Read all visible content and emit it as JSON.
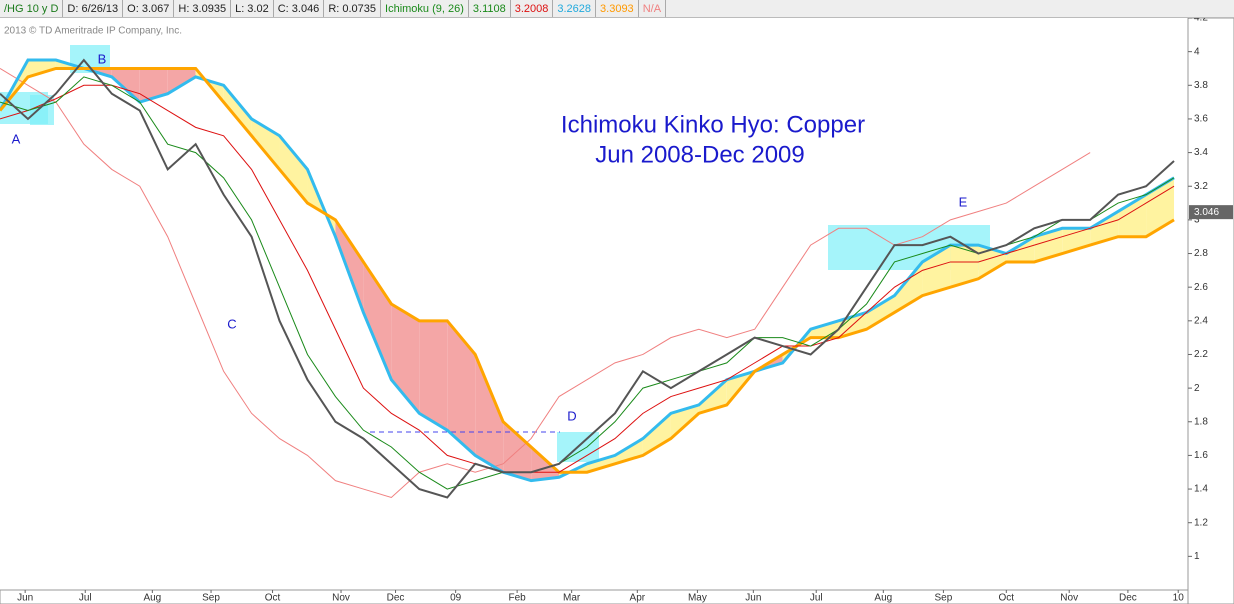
{
  "toolbar": [
    {
      "text": "/HG 10 y D",
      "color": "#1a7a1a"
    },
    {
      "text": "D: 6/26/13",
      "color": "#222"
    },
    {
      "text": "O: 3.067",
      "color": "#222"
    },
    {
      "text": "H: 3.0935",
      "color": "#222"
    },
    {
      "text": "L: 3.02",
      "color": "#222"
    },
    {
      "text": "C: 3.046",
      "color": "#222"
    },
    {
      "text": "R: 0.0735",
      "color": "#222"
    },
    {
      "text": "Ichimoku (9, 26)",
      "color": "#1a8a1a"
    },
    {
      "text": "3.1108",
      "color": "#1a8a1a"
    },
    {
      "text": "3.2008",
      "color": "#dd1111"
    },
    {
      "text": "3.2628",
      "color": "#22aadd"
    },
    {
      "text": "3.3093",
      "color": "#ff9900"
    },
    {
      "text": "N/A",
      "color": "#f08080"
    }
  ],
  "copyright": "2013 © TD Ameritrade IP Company, Inc.",
  "chart_data": {
    "type": "line",
    "title": "Ichimoku Kinko Hyo: Copper",
    "subtitle": "Jun 2008-Dec 2009",
    "annotations": [
      "A",
      "B",
      "C",
      "D",
      "E"
    ],
    "x": [
      0,
      2,
      4,
      6,
      8,
      10,
      12,
      14,
      16,
      18,
      20,
      22,
      24,
      26,
      28,
      30,
      32,
      34,
      36,
      38,
      40,
      42,
      44,
      46,
      48,
      50,
      52,
      54,
      56,
      58,
      60,
      62,
      64,
      66,
      68,
      70,
      72,
      74,
      76,
      78,
      80,
      82,
      84
    ],
    "xlim": [
      0,
      85
    ],
    "xticks": [
      {
        "value": 1.8,
        "label": "Jun"
      },
      {
        "value": 6.1,
        "label": "Jul"
      },
      {
        "value": 10.9,
        "label": "Aug"
      },
      {
        "value": 15.1,
        "label": "Sep"
      },
      {
        "value": 19.5,
        "label": "Oct"
      },
      {
        "value": 24.4,
        "label": "Nov"
      },
      {
        "value": 28.3,
        "label": "Dec"
      },
      {
        "value": 32.6,
        "label": "09"
      },
      {
        "value": 37,
        "label": "Feb"
      },
      {
        "value": 40.9,
        "label": "Mar"
      },
      {
        "value": 45.6,
        "label": "Apr"
      },
      {
        "value": 49.9,
        "label": "May"
      },
      {
        "value": 53.9,
        "label": "Jun"
      },
      {
        "value": 58.4,
        "label": "Jul"
      },
      {
        "value": 63.2,
        "label": "Aug"
      },
      {
        "value": 67.5,
        "label": "Sep"
      },
      {
        "value": 72,
        "label": "Oct"
      },
      {
        "value": 76.5,
        "label": "Nov"
      },
      {
        "value": 80.7,
        "label": "Dec"
      },
      {
        "value": 84.3,
        "label": "10"
      }
    ],
    "ylim": [
      0.8,
      4.2
    ],
    "yticks": [
      1,
      1.2,
      1.4,
      1.6,
      1.8,
      2,
      2.2,
      2.4,
      2.6,
      2.8,
      3,
      3.2,
      3.4,
      3.6,
      3.8,
      4,
      4.2
    ],
    "last_price": 3.046,
    "cloud": {
      "up_color": "#fff3a0",
      "down_color": "#f4a6a6"
    },
    "series": [
      {
        "color": "#f08080",
        "width": 1,
        "values": [
          3.9,
          3.8,
          3.7,
          3.45,
          3.3,
          3.2,
          2.9,
          2.5,
          2.1,
          1.85,
          1.7,
          1.6,
          1.45,
          1.4,
          1.35,
          1.5,
          1.55,
          1.5,
          1.55,
          1.7,
          1.95,
          2.05,
          2.15,
          2.2,
          2.3,
          2.35,
          2.3,
          2.35,
          2.6,
          2.85,
          2.95,
          2.95,
          2.85,
          2.9,
          3.0,
          3.05,
          3.1,
          3.2,
          3.3,
          3.4,
          null,
          null,
          null
        ]
      },
      {
        "color": "#33bbee",
        "width": 3,
        "values": [
          3.65,
          3.95,
          3.95,
          3.9,
          3.85,
          3.7,
          3.75,
          3.85,
          3.8,
          3.6,
          3.5,
          3.3,
          2.9,
          2.45,
          2.05,
          1.85,
          1.75,
          1.6,
          1.5,
          1.45,
          1.47,
          1.55,
          1.6,
          1.7,
          1.85,
          1.9,
          2.05,
          2.1,
          2.15,
          2.35,
          2.4,
          2.45,
          2.55,
          2.75,
          2.85,
          2.85,
          2.8,
          2.9,
          2.95,
          2.95,
          3.05,
          3.15,
          3.25
        ]
      },
      {
        "color": "#ffa500",
        "width": 3,
        "values": [
          3.65,
          3.85,
          3.9,
          3.9,
          3.9,
          3.9,
          3.9,
          3.9,
          3.7,
          3.5,
          3.3,
          3.1,
          3.0,
          2.75,
          2.5,
          2.4,
          2.4,
          2.2,
          1.8,
          1.65,
          1.5,
          1.5,
          1.55,
          1.6,
          1.7,
          1.85,
          1.9,
          2.1,
          2.2,
          2.3,
          2.3,
          2.35,
          2.45,
          2.55,
          2.6,
          2.65,
          2.75,
          2.75,
          2.8,
          2.85,
          2.9,
          2.9,
          3.0
        ]
      },
      {
        "color": "#dd1111",
        "width": 1,
        "values": [
          3.6,
          3.65,
          3.72,
          3.8,
          3.8,
          3.75,
          3.65,
          3.55,
          3.5,
          3.3,
          3.0,
          2.7,
          2.35,
          2.0,
          1.85,
          1.75,
          1.6,
          1.55,
          1.5,
          1.5,
          1.5,
          1.6,
          1.7,
          1.85,
          1.95,
          2.0,
          2.05,
          2.15,
          2.25,
          2.25,
          2.3,
          2.45,
          2.6,
          2.7,
          2.75,
          2.75,
          2.8,
          2.85,
          2.9,
          2.95,
          3.0,
          3.1,
          3.2
        ]
      },
      {
        "color": "#1a8a1a",
        "width": 1,
        "values": [
          3.7,
          3.65,
          3.7,
          3.85,
          3.8,
          3.7,
          3.45,
          3.4,
          3.25,
          3.0,
          2.6,
          2.2,
          1.95,
          1.75,
          1.65,
          1.5,
          1.4,
          1.45,
          1.5,
          1.5,
          1.55,
          1.65,
          1.8,
          2.0,
          2.05,
          2.1,
          2.15,
          2.3,
          2.3,
          2.25,
          2.35,
          2.5,
          2.75,
          2.8,
          2.85,
          2.8,
          2.85,
          2.9,
          3.0,
          3.0,
          3.1,
          3.15,
          3.25
        ]
      },
      {
        "color": "#555555",
        "width": 2,
        "values": [
          3.75,
          3.6,
          3.75,
          3.95,
          3.75,
          3.65,
          3.3,
          3.45,
          3.15,
          2.9,
          2.4,
          2.05,
          1.8,
          1.7,
          1.55,
          1.4,
          1.35,
          1.55,
          1.5,
          1.5,
          1.55,
          1.7,
          1.85,
          2.1,
          2.0,
          2.1,
          2.2,
          2.3,
          2.25,
          2.2,
          2.35,
          2.6,
          2.85,
          2.85,
          2.9,
          2.8,
          2.85,
          2.95,
          3.0,
          3.0,
          3.15,
          3.2,
          3.35
        ]
      }
    ]
  }
}
